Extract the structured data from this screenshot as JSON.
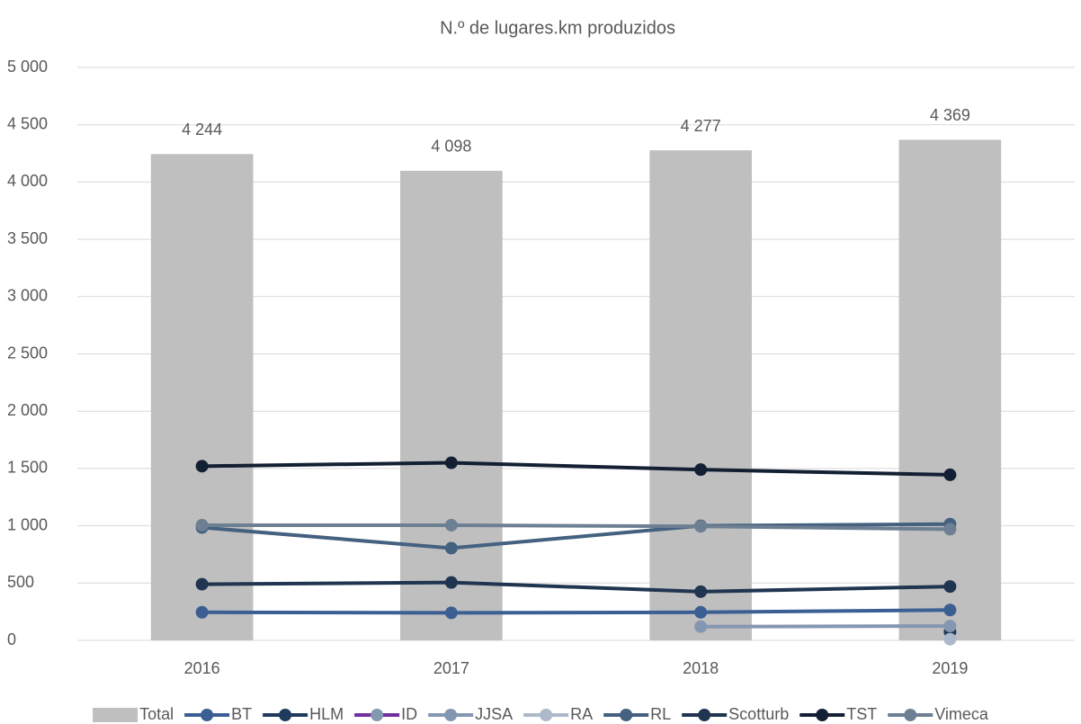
{
  "chart_data": {
    "type": "bar_line",
    "title": "N.º de lugares.km produzidos",
    "categories": [
      "2016",
      "2017",
      "2018",
      "2019"
    ],
    "ylim": [
      0,
      5000
    ],
    "yticks": [
      0,
      500,
      {
        "value": 1000,
        "label": "1 000"
      },
      {
        "value": 1500,
        "label": "1 500"
      },
      {
        "value": 2000,
        "label": "2 000"
      },
      {
        "value": 2500,
        "label": "2 500"
      },
      {
        "value": 3000,
        "label": "3 000"
      },
      {
        "value": 3500,
        "label": "3 500"
      },
      {
        "value": 4000,
        "label": "4 000"
      },
      {
        "value": 4500,
        "label": "4 500"
      },
      {
        "value": 5000,
        "label": "5 000"
      }
    ],
    "grid": true,
    "legend": "bottom",
    "series": [
      {
        "name": "Total",
        "kind": "bar",
        "color": "#bfbfbf",
        "values": [
          4244,
          4098,
          4277,
          4369
        ],
        "value_labels": [
          "4 244",
          "4 098",
          "4 277",
          "4 369"
        ]
      },
      {
        "name": "BT",
        "kind": "line",
        "color": "#3b5f92",
        "values": [
          245,
          240,
          245,
          265
        ]
      },
      {
        "name": "HLM",
        "kind": "line",
        "color": "#1f3a5c",
        "values": [
          null,
          null,
          null,
          75
        ]
      },
      {
        "name": "ID",
        "kind": "line",
        "color": "#7030a0",
        "marker_color": "#8497b0",
        "values": [
          null,
          null,
          null,
          null
        ]
      },
      {
        "name": "JJSA",
        "kind": "line",
        "color": "#8497b0",
        "values": [
          null,
          null,
          120,
          125
        ]
      },
      {
        "name": "RA",
        "kind": "line",
        "color": "#adb9ca",
        "values": [
          null,
          null,
          null,
          10
        ]
      },
      {
        "name": "RL",
        "kind": "line",
        "color": "#44617f",
        "values": [
          985,
          805,
          1000,
          1015
        ]
      },
      {
        "name": "Scotturb",
        "kind": "line",
        "color": "#203550",
        "values": [
          490,
          505,
          425,
          470
        ]
      },
      {
        "name": "TST",
        "kind": "line",
        "color": "#131f33",
        "values": [
          1520,
          1550,
          1490,
          1445
        ]
      },
      {
        "name": "Vimeca",
        "kind": "line",
        "color": "#6d7f92",
        "values": [
          1005,
          1005,
          995,
          970
        ]
      }
    ]
  }
}
